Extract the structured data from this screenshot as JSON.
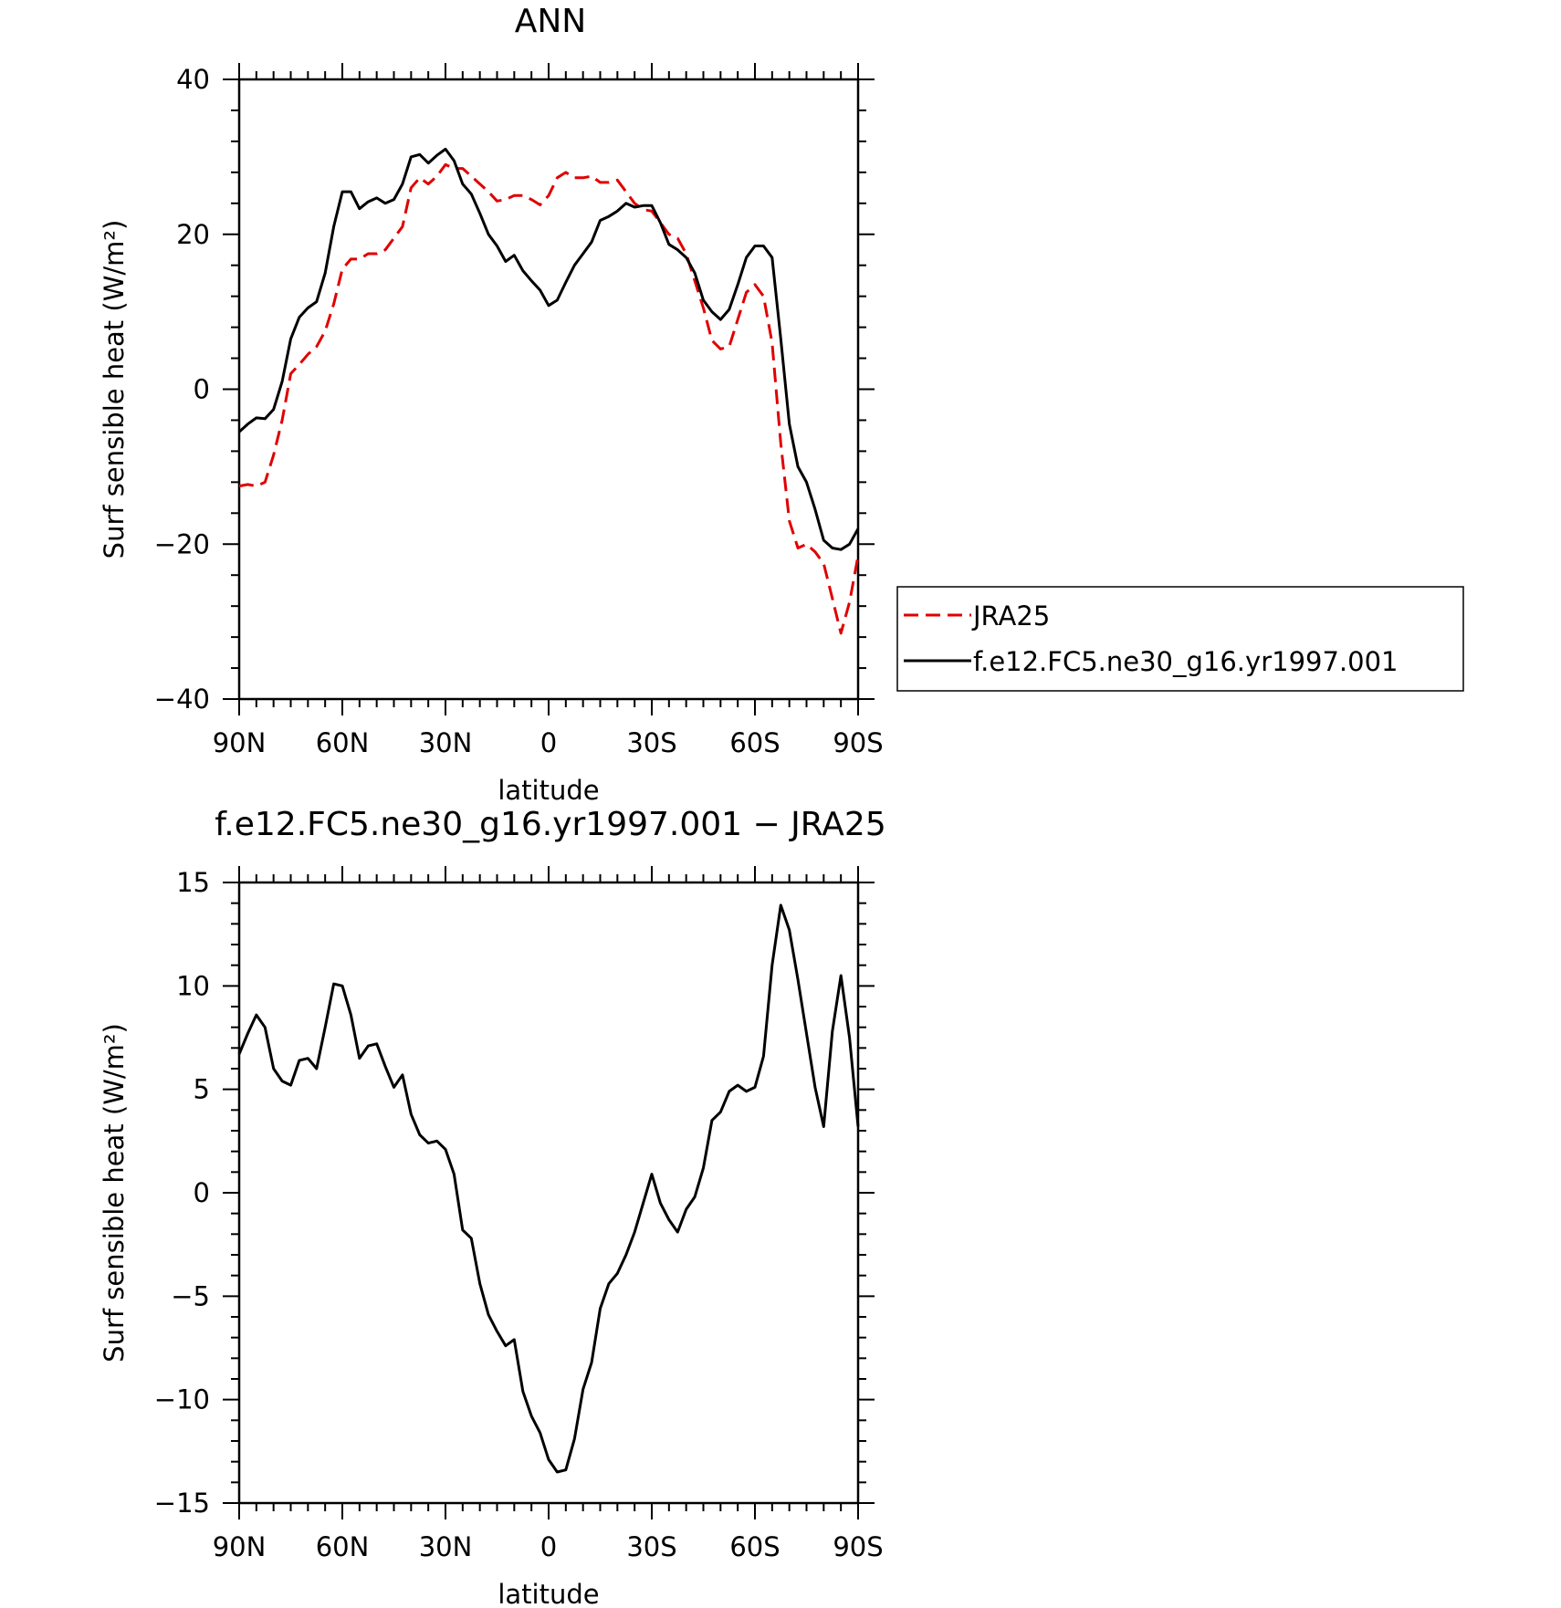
{
  "chart_data": [
    {
      "type": "line",
      "title": "ANN",
      "xlabel": "latitude",
      "ylabel": "Surf sensible heat (W/m²)",
      "xlim": [
        90,
        -90
      ],
      "ylim": [
        -40,
        40
      ],
      "xticks": [
        90,
        60,
        30,
        0,
        -30,
        -60,
        -90
      ],
      "xtick_labels": [
        "90N",
        "60N",
        "30N",
        "0",
        "30S",
        "60S",
        "90S"
      ],
      "yticks": [
        40,
        20,
        0,
        -20,
        -40
      ],
      "ytick_labels": [
        "40",
        "20",
        "0",
        "−20",
        "−40"
      ],
      "legend_position": "right, outside plot",
      "series": [
        {
          "name": "JRA25",
          "color": "#e00000",
          "style": "dashed",
          "x": [
            90,
            87.5,
            85,
            82.5,
            80,
            77.5,
            75,
            72.5,
            70,
            67.5,
            65,
            62.5,
            60,
            57.5,
            55,
            52.5,
            50,
            47.5,
            45,
            42.5,
            40,
            37.5,
            35,
            32.5,
            30,
            27.5,
            25,
            22.5,
            20,
            17.5,
            15,
            12.5,
            10,
            7.5,
            5,
            2.5,
            0,
            -2.5,
            -5,
            -7.5,
            -10,
            -12.5,
            -15,
            -17.5,
            -20,
            -22.5,
            -25,
            -27.5,
            -30,
            -32.5,
            -35,
            -37.5,
            -40,
            -42.5,
            -45,
            -47.5,
            -50,
            -52.5,
            -55,
            -57.5,
            -60,
            -62.5,
            -65,
            -67.5,
            -70,
            -72.5,
            -75,
            -77.5,
            -80,
            -82.5,
            -85,
            -87.5,
            -90
          ],
          "y": [
            -12.5,
            -12.3,
            -12.5,
            -12,
            -8.5,
            -4,
            2,
            3.2,
            4.5,
            5.5,
            7.5,
            11,
            15.5,
            16.8,
            16.8,
            17.5,
            17.5,
            18,
            19.5,
            21,
            26,
            27.3,
            26.5,
            27.5,
            29,
            28.5,
            28.5,
            27.5,
            26.5,
            25.5,
            24.3,
            24.5,
            25,
            25,
            24.5,
            23.8,
            25,
            27.3,
            28,
            27.3,
            27.3,
            27.5,
            26.7,
            26.7,
            27,
            25.5,
            24,
            23.2,
            23,
            21.5,
            20,
            19.5,
            17.5,
            14,
            10.5,
            6.3,
            5.2,
            5.5,
            9,
            12.5,
            13.5,
            12,
            6,
            -7,
            -17,
            -20.5,
            -20,
            -21,
            -22.5,
            -27,
            -31.5,
            -27.5,
            -21.5
          ]
        },
        {
          "name": "f.e12.FC5.ne30_g16.yr1997.001",
          "color": "#000000",
          "style": "solid",
          "x": [
            90,
            87.5,
            85,
            82.5,
            80,
            77.5,
            75,
            72.5,
            70,
            67.5,
            65,
            62.5,
            60,
            57.5,
            55,
            52.5,
            50,
            47.5,
            45,
            42.5,
            40,
            37.5,
            35,
            32.5,
            30,
            27.5,
            25,
            22.5,
            20,
            17.5,
            15,
            12.5,
            10,
            7.5,
            5,
            2.5,
            0,
            -2.5,
            -5,
            -7.5,
            -10,
            -12.5,
            -15,
            -17.5,
            -20,
            -22.5,
            -25,
            -27.5,
            -30,
            -32.5,
            -35,
            -37.5,
            -40,
            -42.5,
            -45,
            -47.5,
            -50,
            -52.5,
            -55,
            -57.5,
            -60,
            -62.5,
            -65,
            -67.5,
            -70,
            -72.5,
            -75,
            -77.5,
            -80,
            -82.5,
            -85,
            -87.5,
            -90
          ],
          "y": [
            -5.5,
            -4.5,
            -3.7,
            -3.8,
            -2.6,
            1,
            6.5,
            9.3,
            10.5,
            11.3,
            15,
            21,
            25.5,
            25.5,
            23.3,
            24.2,
            24.7,
            24,
            24.5,
            26.5,
            30,
            30.3,
            29.2,
            30.2,
            31,
            29.5,
            26.5,
            25.2,
            22.7,
            20,
            18.5,
            16.5,
            17.3,
            15.3,
            14,
            12.8,
            10.8,
            11.5,
            13.8,
            16,
            17.5,
            19,
            21.8,
            22.3,
            23,
            24,
            23.5,
            23.7,
            23.7,
            21.5,
            18.7,
            18,
            17,
            15,
            11.5,
            10,
            9,
            10.3,
            13.5,
            17,
            18.5,
            18.5,
            17,
            6.5,
            -4.5,
            -10,
            -12,
            -15.5,
            -19.5,
            -20.5,
            -20.7,
            -20,
            -18
          ]
        }
      ]
    },
    {
      "type": "line",
      "title": "f.e12.FC5.ne30_g16.yr1997.001 − JRA25",
      "xlabel": "latitude",
      "ylabel": "Surf sensible heat (W/m²)",
      "xlim": [
        90,
        -90
      ],
      "ylim": [
        -15,
        15
      ],
      "xticks": [
        90,
        60,
        30,
        0,
        -30,
        -60,
        -90
      ],
      "xtick_labels": [
        "90N",
        "60N",
        "30N",
        "0",
        "30S",
        "60S",
        "90S"
      ],
      "yticks": [
        15,
        10,
        5,
        0,
        -5,
        -10,
        -15
      ],
      "ytick_labels": [
        "15",
        "10",
        "5",
        "0",
        "−5",
        "−10",
        "−15"
      ],
      "series": [
        {
          "color": "#000000",
          "style": "solid",
          "x": [
            90,
            87.5,
            85,
            82.5,
            80,
            77.5,
            75,
            72.5,
            70,
            67.5,
            65,
            62.5,
            60,
            57.5,
            55,
            52.5,
            50,
            47.5,
            45,
            42.5,
            40,
            37.5,
            35,
            32.5,
            30,
            27.5,
            25,
            22.5,
            20,
            17.5,
            15,
            12.5,
            10,
            7.5,
            5,
            2.5,
            0,
            -2.5,
            -5,
            -7.5,
            -10,
            -12.5,
            -15,
            -17.5,
            -20,
            -22.5,
            -25,
            -27.5,
            -30,
            -32.5,
            -35,
            -37.5,
            -40,
            -42.5,
            -45,
            -47.5,
            -50,
            -52.5,
            -55,
            -57.5,
            -60,
            -62.5,
            -65,
            -67.5,
            -70,
            -72.5,
            -75,
            -77.5,
            -80,
            -82.5,
            -85,
            -87.5,
            -90
          ],
          "y": [
            6.7,
            7.7,
            8.6,
            8,
            6,
            5.4,
            5.2,
            6.4,
            6.5,
            6,
            8,
            10.1,
            10,
            8.6,
            6.5,
            7.1,
            7.2,
            6.1,
            5.1,
            5.7,
            3.8,
            2.8,
            2.4,
            2.5,
            2.1,
            0.9,
            -1.8,
            -2.2,
            -4.4,
            -5.9,
            -6.7,
            -7.4,
            -7.1,
            -9.6,
            -10.8,
            -11.6,
            -12.9,
            -13.5,
            -13.4,
            -11.9,
            -9.5,
            -8.2,
            -5.6,
            -4.4,
            -3.9,
            -3.0,
            -1.9,
            -0.5,
            0.9,
            -0.5,
            -1.3,
            -1.9,
            -0.8,
            -0.2,
            1.2,
            3.5,
            3.9,
            4.9,
            5.2,
            4.9,
            5.1,
            6.6,
            11,
            13.9,
            12.7,
            10.3,
            7.7,
            5.1,
            3.2,
            7.8,
            10.5,
            7.5,
            3.2
          ]
        }
      ]
    }
  ]
}
